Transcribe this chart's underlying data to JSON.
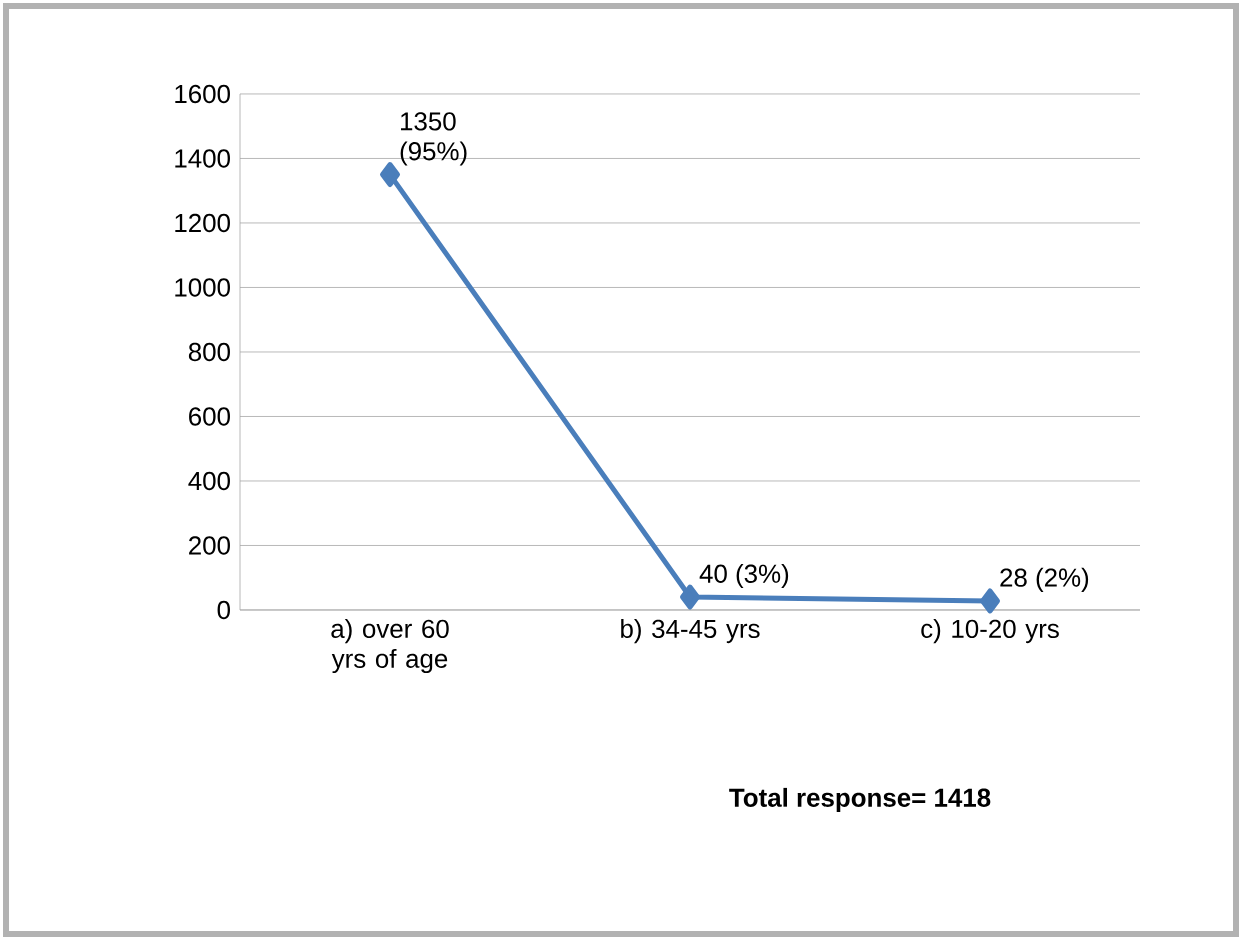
{
  "chart_data": {
    "type": "line",
    "categories": [
      "a) over 60 yrs of age",
      "b) 34-45 yrs",
      "c) 10-20 yrs"
    ],
    "values": [
      1350,
      40,
      28
    ],
    "value_labels": [
      "1350 (95%)",
      "40 (3%)",
      "28 (2%)"
    ],
    "color": "#4a7ebb",
    "marker": "diamond",
    "line_style": "solid",
    "ylim": [
      0,
      1600
    ],
    "yticks": [
      0,
      200,
      400,
      600,
      800,
      1000,
      1200,
      1400,
      1600
    ],
    "grid": "y",
    "annotations": [
      "Total response= 1418"
    ]
  }
}
